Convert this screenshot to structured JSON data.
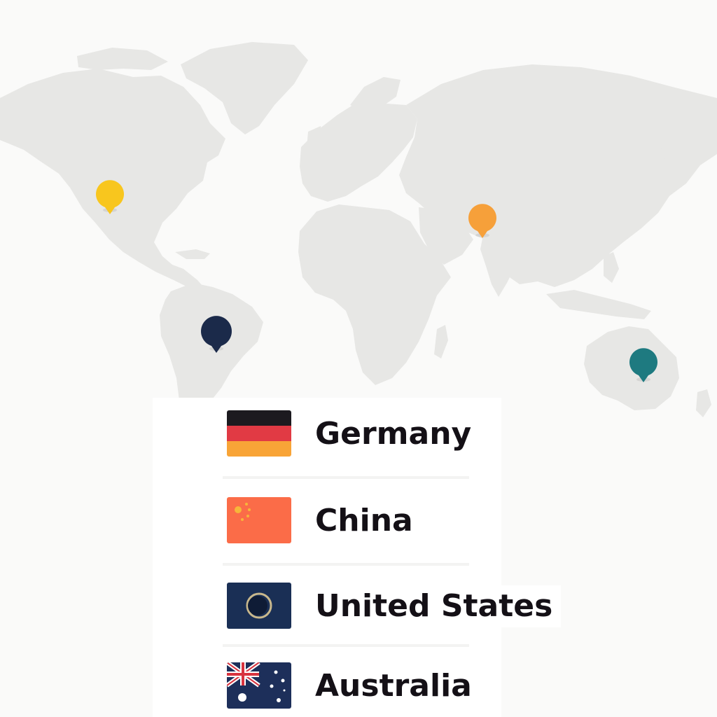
{
  "map": {
    "land_color": "#e7e7e5",
    "background_color": "#fafaf9"
  },
  "markers": [
    {
      "region": "North America",
      "color": "#f8c61e"
    },
    {
      "region": "South Asia",
      "color": "#f6a03a"
    },
    {
      "region": "South America",
      "color": "#1b2a4a"
    },
    {
      "region": "Australia",
      "color": "#1e7a80"
    }
  ],
  "legend": {
    "items": [
      {
        "label": "Germany",
        "flag": "germany-flag-icon"
      },
      {
        "label": "China",
        "flag": "china-flag-icon"
      },
      {
        "label": "United States",
        "flag": "united-states-flag-icon"
      },
      {
        "label": "Australia",
        "flag": "australia-flag-icon"
      }
    ]
  }
}
